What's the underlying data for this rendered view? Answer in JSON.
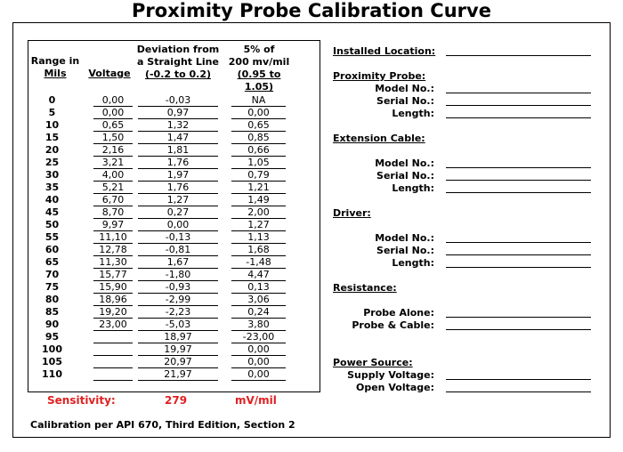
{
  "title": "Proximity Probe Calibration Curve",
  "table": {
    "headers": {
      "range_line1": "Range in",
      "range_line2": "Mils",
      "voltage": "Voltage",
      "dev_line1": "Deviation from",
      "dev_line2": "a Straight Line",
      "dev_line3": "(-0.2 to 0.2)",
      "pct_line1": "5% of",
      "pct_line2": "200 mv/mil",
      "pct_line3": "(0.95 to 1.05)"
    },
    "rows": [
      {
        "mils": "0",
        "voltage": "0,00",
        "deviation": "-0,03",
        "pct": "NA"
      },
      {
        "mils": "5",
        "voltage": "0,00",
        "deviation": "0,97",
        "pct": "0,00"
      },
      {
        "mils": "10",
        "voltage": "0,65",
        "deviation": "1,32",
        "pct": "0,65"
      },
      {
        "mils": "15",
        "voltage": "1,50",
        "deviation": "1,47",
        "pct": "0,85"
      },
      {
        "mils": "20",
        "voltage": "2,16",
        "deviation": "1,81",
        "pct": "0,66"
      },
      {
        "mils": "25",
        "voltage": "3,21",
        "deviation": "1,76",
        "pct": "1,05"
      },
      {
        "mils": "30",
        "voltage": "4,00",
        "deviation": "1,97",
        "pct": "0,79"
      },
      {
        "mils": "35",
        "voltage": "5,21",
        "deviation": "1,76",
        "pct": "1,21"
      },
      {
        "mils": "40",
        "voltage": "6,70",
        "deviation": "1,27",
        "pct": "1,49"
      },
      {
        "mils": "45",
        "voltage": "8,70",
        "deviation": "0,27",
        "pct": "2,00"
      },
      {
        "mils": "50",
        "voltage": "9,97",
        "deviation": "0,00",
        "pct": "1,27"
      },
      {
        "mils": "55",
        "voltage": "11,10",
        "deviation": "-0,13",
        "pct": "1,13"
      },
      {
        "mils": "60",
        "voltage": "12,78",
        "deviation": "-0,81",
        "pct": "1,68"
      },
      {
        "mils": "65",
        "voltage": "11,30",
        "deviation": "1,67",
        "pct": "-1,48"
      },
      {
        "mils": "70",
        "voltage": "15,77",
        "deviation": "-1,80",
        "pct": "4,47"
      },
      {
        "mils": "75",
        "voltage": "15,90",
        "deviation": "-0,93",
        "pct": "0,13"
      },
      {
        "mils": "80",
        "voltage": "18,96",
        "deviation": "-2,99",
        "pct": "3,06"
      },
      {
        "mils": "85",
        "voltage": "19,20",
        "deviation": "-2,23",
        "pct": "0,24"
      },
      {
        "mils": "90",
        "voltage": "23,00",
        "deviation": "-5,03",
        "pct": "3,80"
      },
      {
        "mils": "95",
        "voltage": "",
        "deviation": "18,97",
        "pct": "-23,00"
      },
      {
        "mils": "100",
        "voltage": "",
        "deviation": "19,97",
        "pct": "0,00"
      },
      {
        "mils": "105",
        "voltage": "",
        "deviation": "20,97",
        "pct": "0,00"
      },
      {
        "mils": "110",
        "voltage": "",
        "deviation": "21,97",
        "pct": "0,00"
      }
    ]
  },
  "sensitivity": {
    "label": "Sensitivity:",
    "value": "279",
    "unit": "mV/mil"
  },
  "calibration_note": "Calibration per API 670, Third Edition, Section 2",
  "form": {
    "installed_location": "Installed Location:",
    "proximity_probe": "Proximity Probe:",
    "extension_cable": "Extension Cable:",
    "driver": "Driver:",
    "resistance": "Resistance:",
    "power_source": "Power Source:",
    "model_no": "Model No.:",
    "serial_no": "Serial No.:",
    "length": "Length:",
    "probe_alone": "Probe Alone:",
    "probe_cable": "Probe & Cable:",
    "supply_voltage": "Supply Voltage:",
    "open_voltage": "Open Voltage:"
  }
}
